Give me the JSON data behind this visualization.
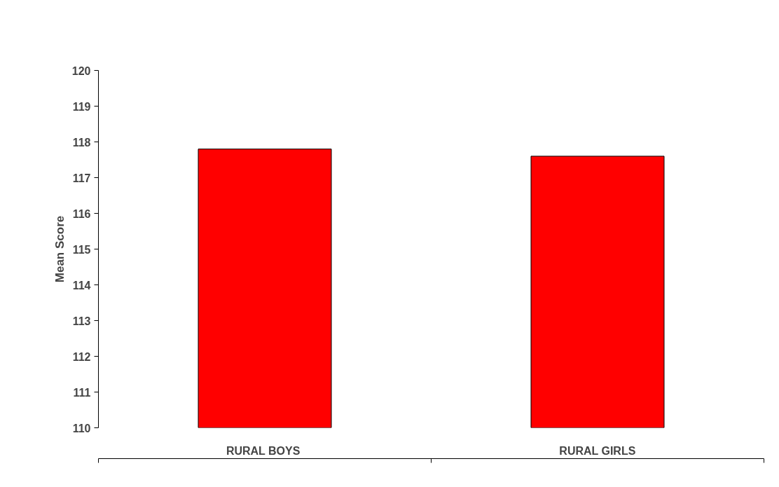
{
  "chart_data": {
    "type": "bar",
    "ylabel": "Mean Score",
    "categories": [
      "RURAL  BOYS",
      "RURAL GIRLS"
    ],
    "values": [
      117.8,
      117.6
    ],
    "color": "#ff0000",
    "ylim": [
      110,
      120
    ],
    "yticks": [
      110,
      111,
      112,
      113,
      114,
      115,
      116,
      117,
      118,
      119,
      120
    ],
    "grid": false
  }
}
